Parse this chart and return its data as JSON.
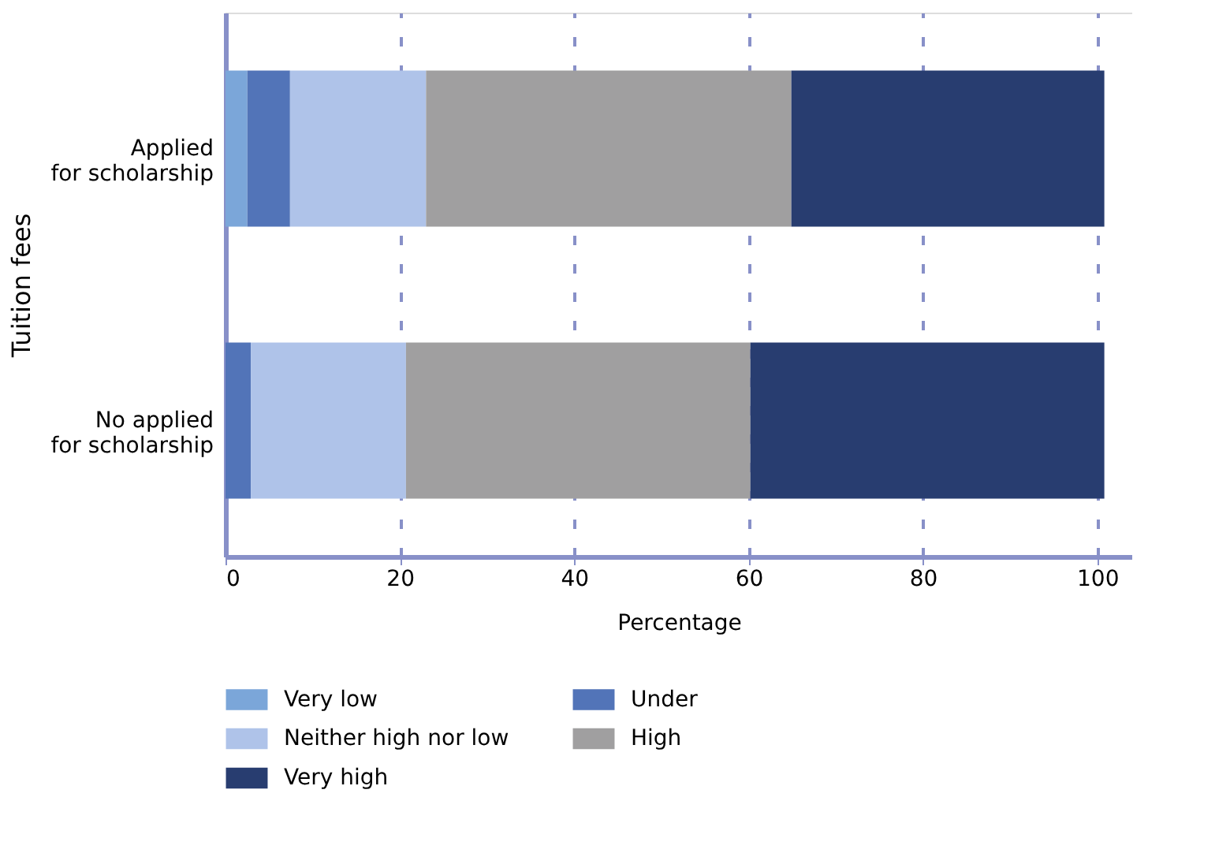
{
  "chart_data": {
    "type": "bar",
    "orientation": "horizontal",
    "stacked": true,
    "xlabel": "Percentage",
    "ylabel": "Tuition fees",
    "categories": [
      "Applied for scholarship",
      "No applied for scholarship"
    ],
    "series": [
      {
        "name": "Very low",
        "color": "#7ba6d9",
        "values": [
          2.5,
          0
        ]
      },
      {
        "name": "Under",
        "color": "#5274b8",
        "values": [
          4.9,
          2.9
        ]
      },
      {
        "name": "Neither high nor low",
        "color": "#afc3e9",
        "values": [
          15.6,
          17.8
        ]
      },
      {
        "name": "High",
        "color": "#a09fa0",
        "values": [
          41.9,
          39.5
        ]
      },
      {
        "name": "Very high",
        "color": "#283d70",
        "values": [
          35.9,
          40.6
        ]
      }
    ],
    "xlim": [
      0,
      104
    ],
    "xticks": [
      0,
      20,
      40,
      60,
      80,
      100
    ],
    "grid": "x",
    "legend": "bottom"
  }
}
